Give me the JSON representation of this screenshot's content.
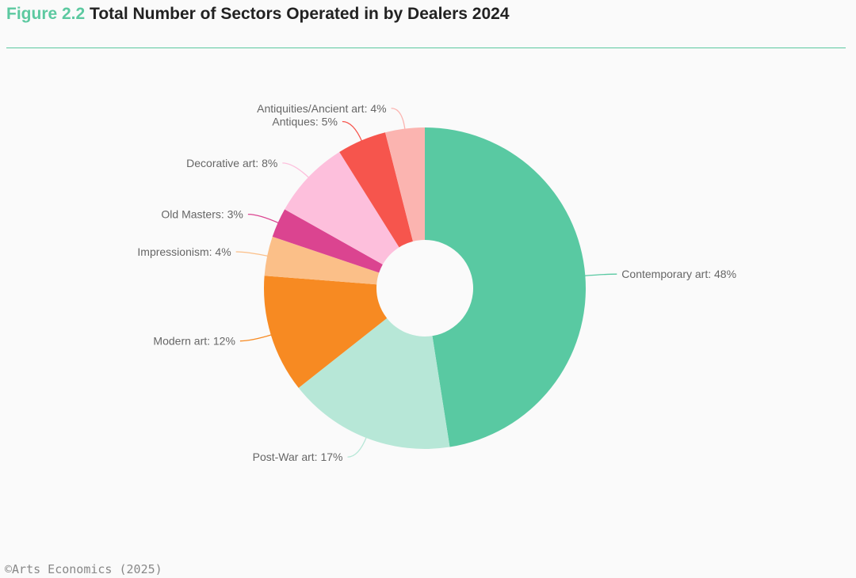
{
  "header": {
    "figure_label": "Figure 2.2",
    "title": "Total Number of Sectors Operated in by Dealers 2024"
  },
  "footer": {
    "source": "©Arts Economics (2025)"
  },
  "chart_data": {
    "type": "pie",
    "donut": true,
    "title": "Total Number of Sectors Operated in by Dealers 2024",
    "unit": "%",
    "slices": [
      {
        "label": "Contemporary art: 48%",
        "value": 48,
        "color": "#59c9a2"
      },
      {
        "label": "Post-War art: 17%",
        "value": 17,
        "color": "#b7e7d7"
      },
      {
        "label": "Modern art: 12%",
        "value": 12,
        "color": "#f78a22"
      },
      {
        "label": "Impressionism: 4%",
        "value": 4,
        "color": "#fbbf88"
      },
      {
        "label": "Old Masters: 3%",
        "value": 3,
        "color": "#db4490"
      },
      {
        "label": "Decorative art: 8%",
        "value": 8,
        "color": "#fdbfdc"
      },
      {
        "label": "Antiques: 5%",
        "value": 5,
        "color": "#f6554d"
      },
      {
        "label": "Antiquities/Ancient art: 4%",
        "value": 4,
        "color": "#fbb4b0"
      }
    ]
  }
}
